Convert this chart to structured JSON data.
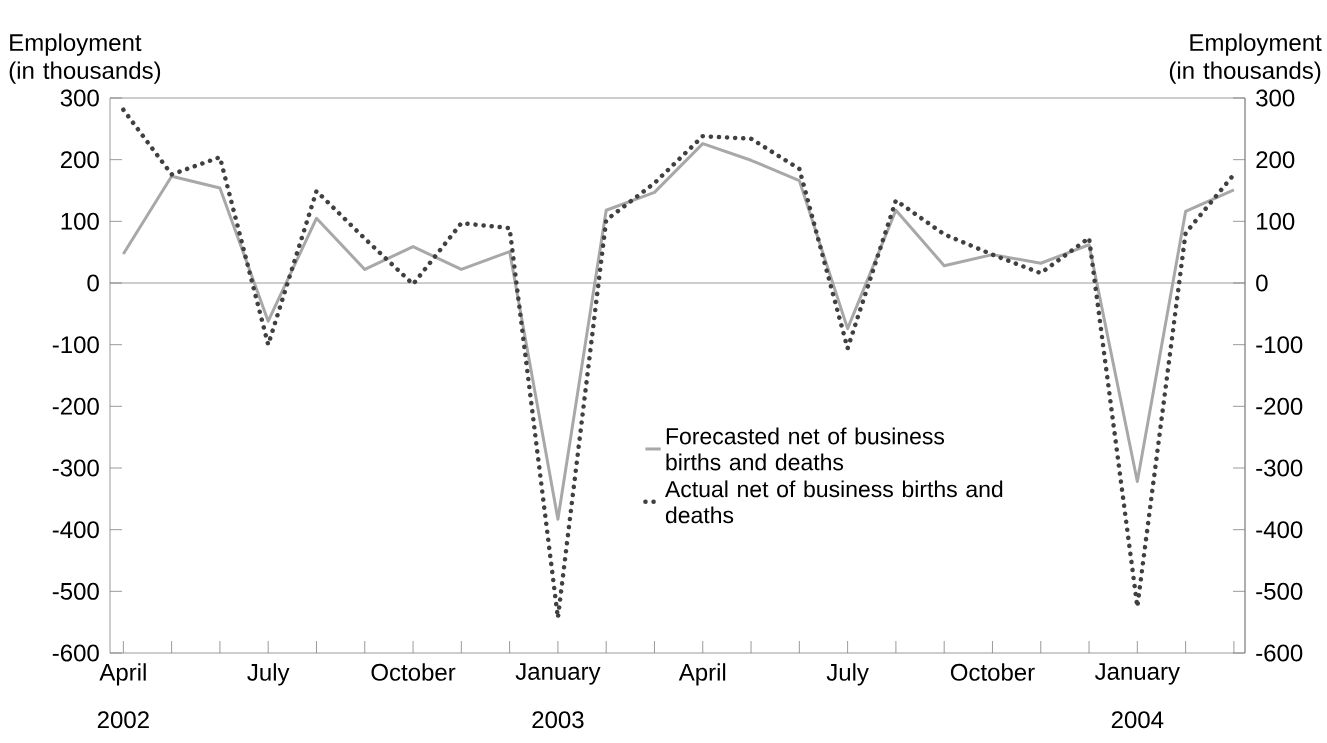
{
  "chart_data": {
    "type": "line",
    "ylabel": "Employment (in thousands)",
    "y2label": "Employment (in thousands)",
    "x": [
      "2002-04",
      "2002-05",
      "2002-06",
      "2002-07",
      "2002-08",
      "2002-09",
      "2002-10",
      "2002-11",
      "2002-12",
      "2003-01",
      "2003-02",
      "2003-03",
      "2003-04",
      "2003-05",
      "2003-06",
      "2003-07",
      "2003-08",
      "2003-09",
      "2003-10",
      "2003-11",
      "2003-12",
      "2004-01",
      "2004-02",
      "2004-03"
    ],
    "xlim": [
      "2002-03-23",
      "2004-03-08"
    ],
    "xticks": [
      {
        "value": "2002-04",
        "label": "April"
      },
      {
        "value": "2002-05",
        "label": null
      },
      {
        "value": "2002-06",
        "label": null
      },
      {
        "value": "2002-07",
        "label": "July"
      },
      {
        "value": "2002-08",
        "label": null
      },
      {
        "value": "2002-09",
        "label": null
      },
      {
        "value": "2002-10",
        "label": "October"
      },
      {
        "value": "2002-11",
        "label": null
      },
      {
        "value": "2002-12",
        "label": null
      },
      {
        "value": "2003-01",
        "label": "January"
      },
      {
        "value": "2003-02",
        "label": null
      },
      {
        "value": "2003-03",
        "label": null
      },
      {
        "value": "2003-04",
        "label": "April"
      },
      {
        "value": "2003-05",
        "label": null
      },
      {
        "value": "2003-06",
        "label": null
      },
      {
        "value": "2003-07",
        "label": "July"
      },
      {
        "value": "2003-08",
        "label": null
      },
      {
        "value": "2003-09",
        "label": null
      },
      {
        "value": "2003-10",
        "label": "October"
      },
      {
        "value": "2003-11",
        "label": null
      },
      {
        "value": "2003-12",
        "label": null
      },
      {
        "value": "2004-01",
        "label": "January"
      },
      {
        "value": "2004-02",
        "label": null
      },
      {
        "value": "2004-03",
        "label": null
      }
    ],
    "ylim": [
      -600,
      300
    ],
    "yticks": [
      -600,
      -500,
      -400,
      -300,
      -200,
      -100,
      0,
      100,
      200,
      300
    ],
    "y2lim": [
      -600,
      300
    ],
    "y2ticks": [
      -600,
      -500,
      -400,
      -300,
      -200,
      -100,
      0,
      100,
      200,
      300
    ],
    "series": [
      {
        "name": "Forecasted net of business births and deaths",
        "color": "#a8a8a8",
        "line_style": "solid",
        "values": [
          47,
          173,
          154,
          -62,
          105,
          22,
          59,
          22,
          51,
          -383,
          118,
          147,
          226,
          199,
          166,
          -74,
          118,
          28,
          46,
          32,
          62,
          -322,
          116,
          151
        ]
      },
      {
        "name": "Actual net of business births and deaths",
        "color": "#404040",
        "line_style": "dotted",
        "values": [
          281,
          176,
          204,
          -100,
          149,
          72,
          -2,
          97,
          89,
          -543,
          102,
          162,
          238,
          234,
          185,
          -106,
          134,
          79,
          46,
          16,
          73,
          -525,
          81,
          176
        ]
      }
    ],
    "ref_lines": [
      {
        "axis": "y",
        "value": 0
      }
    ],
    "annotations": [
      "2002",
      "2003",
      "2004"
    ],
    "legend": "center"
  }
}
